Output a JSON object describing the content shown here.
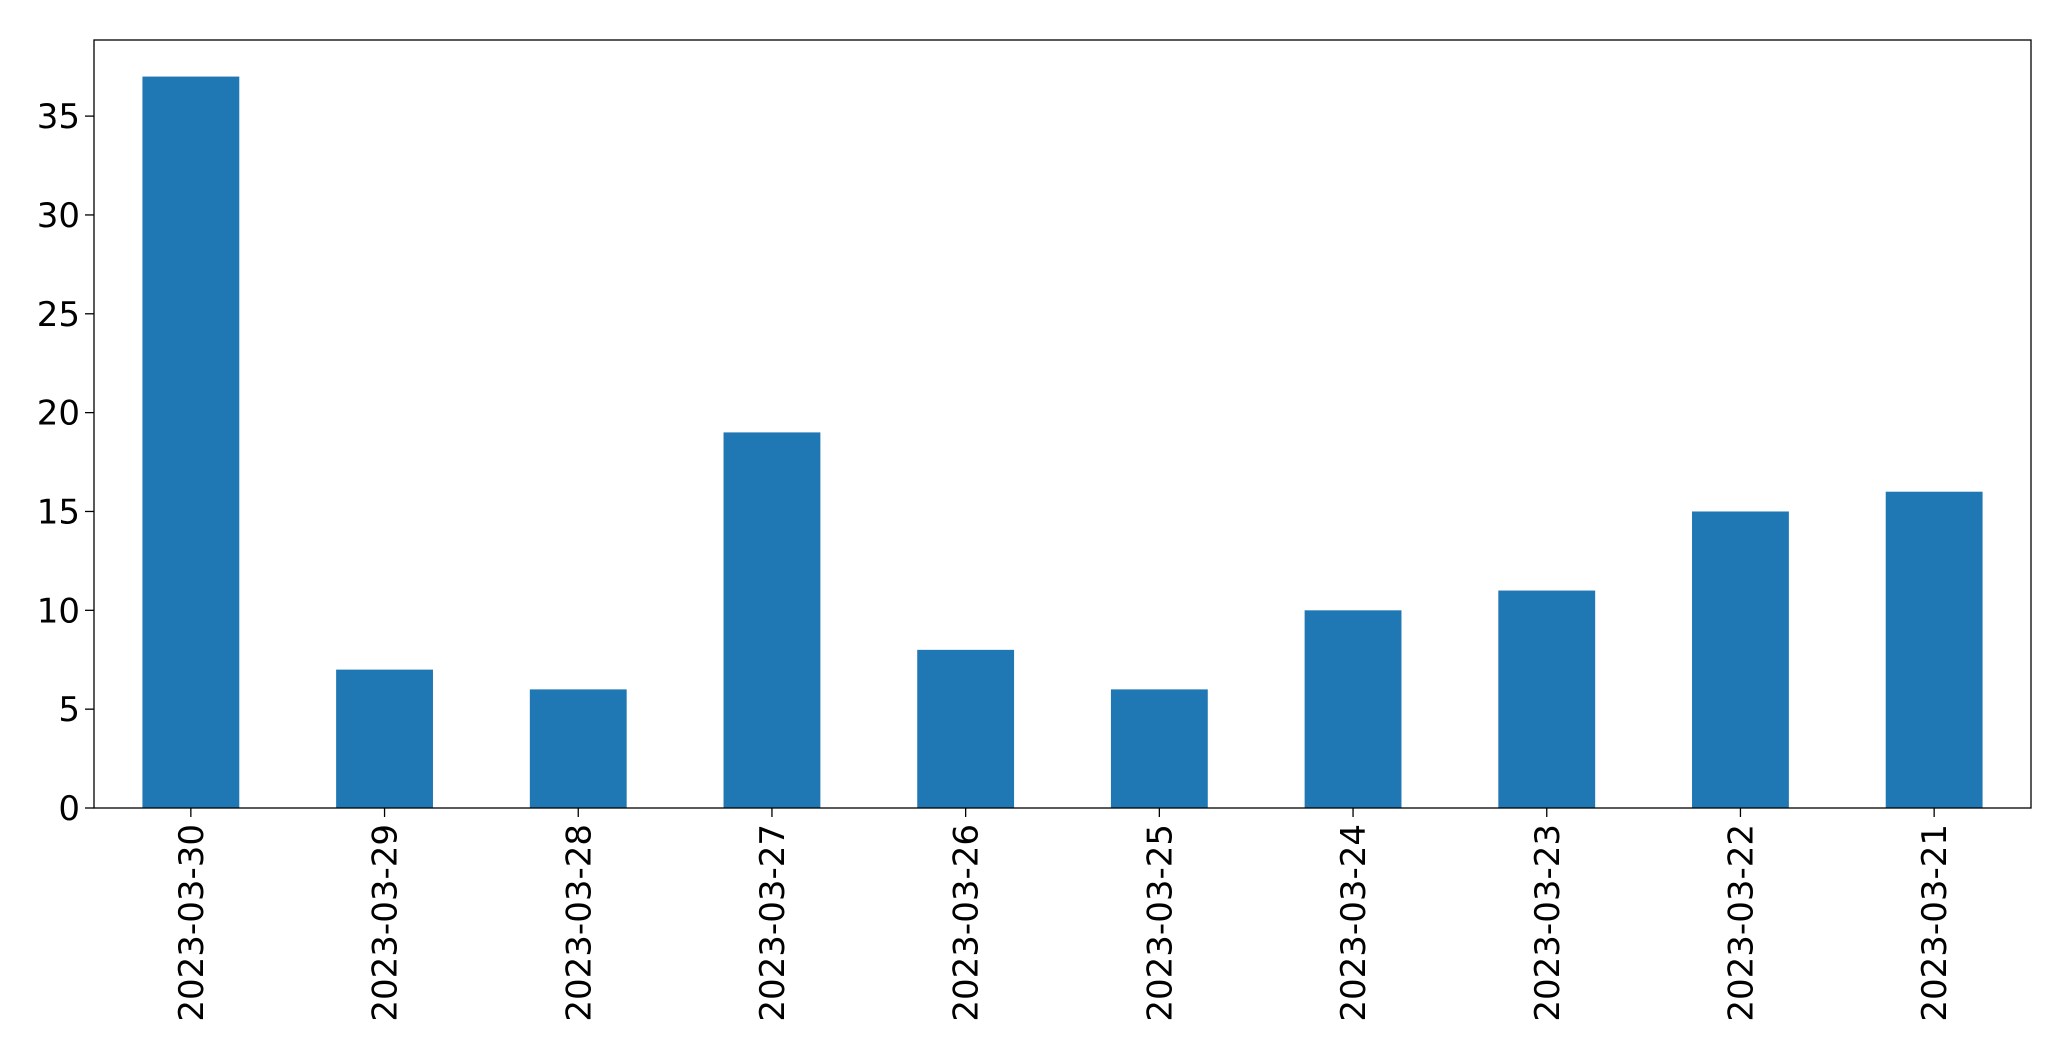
{
  "chart_data": {
    "type": "bar",
    "categories": [
      "2023-03-30",
      "2023-03-29",
      "2023-03-28",
      "2023-03-27",
      "2023-03-26",
      "2023-03-25",
      "2023-03-24",
      "2023-03-23",
      "2023-03-22",
      "2023-03-21"
    ],
    "values": [
      37,
      7,
      6,
      19,
      8,
      6,
      10,
      11,
      15,
      16
    ],
    "color": "#1f77b4",
    "ylim": [
      0,
      38.85
    ],
    "yticks": [
      0,
      5,
      10,
      15,
      20,
      25,
      30,
      35
    ],
    "grid": false
  }
}
